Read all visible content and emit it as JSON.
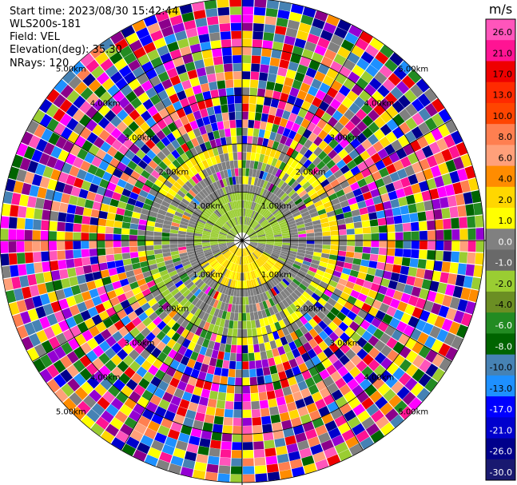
{
  "header": {
    "start_time": "Start time: 2023/08/30 15:42:44",
    "instrument": "WLS200s-181",
    "field": "Field: VEL",
    "elevation": "Elevation(deg): 35.30",
    "nrays": "NRays: 120"
  },
  "chart_data": {
    "type": "heatmap",
    "subtype": "polar-ppi",
    "field": "VEL",
    "units": "m/s",
    "nrays": 120,
    "range_rings_km": [
      {
        "value": 1,
        "label": "1.00km"
      },
      {
        "value": 2,
        "label": "2.00km"
      },
      {
        "value": 3,
        "label": "3.00km"
      },
      {
        "value": 4,
        "label": "4.00km"
      },
      {
        "value": 5,
        "label": "5.00km"
      }
    ],
    "colorbar": {
      "unit_label": "m/s",
      "ticks": [
        "26.0",
        "21.0",
        "17.0",
        "13.0",
        "10.0",
        "8.0",
        "6.0",
        "4.0",
        "2.0",
        "1.0",
        "0.0",
        "-1.0",
        "-2.0",
        "-4.0",
        "-6.0",
        "-8.0",
        "-10.0",
        "-13.0",
        "-17.0",
        "-21.0",
        "-26.0",
        "-30.0"
      ],
      "colors": [
        "#ff55bb",
        "#ff1493",
        "#ee0000",
        "#ff2a00",
        "#ff4500",
        "#ff7f50",
        "#ffa07a",
        "#ff8c00",
        "#ffd700",
        "#ffff00",
        "#808080",
        "#696969",
        "#9acd32",
        "#6b8e23",
        "#228b22",
        "#006400",
        "#4682b4",
        "#1e90ff",
        "#0000ff",
        "#0000cd",
        "#00008b",
        "#191970"
      ]
    },
    "regions": [
      {
        "name": "near-field",
        "description_values": "gray 0.0 to -1.0 m/s with green (-1.0 to -2.0) patch north and yellow (1.0 to 2.0) patch south"
      },
      {
        "name": "mid-ring",
        "description_values": "yellow band about 1.9 km to north-east, green to south-west"
      },
      {
        "name": "far-field",
        "description_values": "mixed noise across all values"
      }
    ]
  }
}
